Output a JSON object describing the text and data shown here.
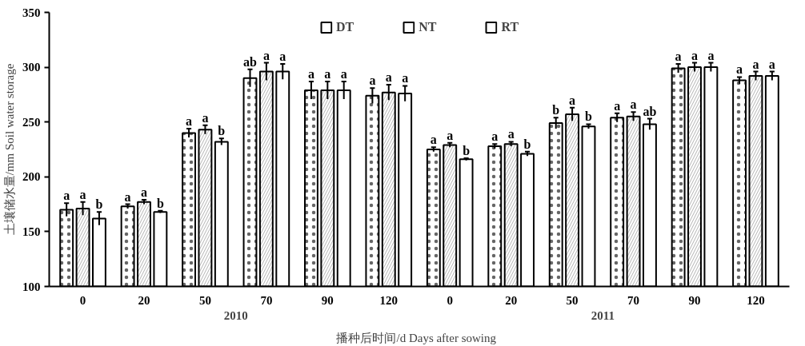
{
  "chart_data": {
    "type": "bar",
    "ylabel": "土壤储水量/mm Soil water storage",
    "xlabel": "播种后时间/d   Days after sowing",
    "categories": [
      "0",
      "20",
      "50",
      "70",
      "90",
      "120",
      "0",
      "20",
      "50",
      "70",
      "90",
      "120"
    ],
    "series": [
      {
        "name": "DT",
        "color": "#ffffff",
        "values": [
          170,
          173,
          240,
          290,
          279,
          274,
          225,
          228,
          249,
          254,
          299,
          288
        ],
        "errors": [
          6,
          2,
          4,
          8,
          8,
          7,
          2,
          2,
          5,
          4,
          4,
          3
        ],
        "value_labels": [
          "a",
          "a",
          "a",
          "ab",
          "a",
          "a",
          "a",
          "a",
          "b",
          "a",
          "a",
          "a"
        ]
      },
      {
        "name": "NT",
        "color": "#ffffff",
        "values": [
          171,
          177,
          243,
          296,
          279,
          277,
          229,
          230,
          257,
          255,
          300,
          292
        ],
        "errors": [
          6,
          2,
          4,
          8,
          8,
          7,
          2,
          2,
          6,
          4,
          4,
          4
        ],
        "value_labels": [
          "a",
          "a",
          "a",
          "a",
          "a",
          "a",
          "a",
          "a",
          "a",
          "a",
          "a",
          "a"
        ]
      },
      {
        "name": "RT",
        "color": "#ffffff",
        "values": [
          162,
          168,
          232,
          296,
          279,
          276,
          216,
          221,
          246,
          248,
          300,
          292
        ],
        "errors": [
          6,
          1,
          3,
          7,
          8,
          7,
          1,
          2,
          2,
          5,
          4,
          4
        ],
        "value_labels": [
          "b",
          "b",
          "b",
          "a",
          "a",
          "a",
          "b",
          "b",
          "b",
          "ab",
          "a",
          "a"
        ]
      }
    ],
    "annotations": [
      {
        "text": "2010"
      },
      {
        "text": "2011"
      }
    ],
    "ylim": [
      100,
      350
    ],
    "yticks": [
      100,
      150,
      200,
      250,
      300,
      350
    ],
    "grid": false,
    "legend": "top"
  }
}
